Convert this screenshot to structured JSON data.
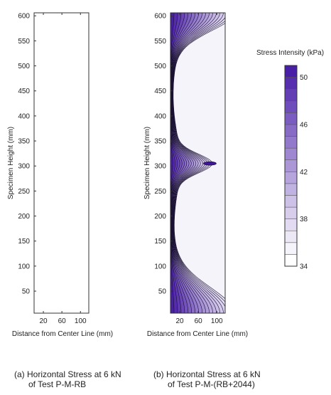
{
  "chart_data": [
    {
      "type": "heatmap",
      "panel": "a",
      "xlabel": "Distance from Center Line (mm)",
      "ylabel": "Specimen Height (mm)",
      "xticks": [
        20,
        60,
        100
      ],
      "yticks": [
        50,
        100,
        150,
        200,
        250,
        300,
        350,
        400,
        450,
        500,
        550,
        600
      ],
      "xlim": [
        0,
        118
      ],
      "ylim": [
        6,
        606
      ],
      "caption": [
        "(a) Horizontal Stress at 6 kN",
        "of Test P-M-RB"
      ],
      "grid": false
    },
    {
      "type": "heatmap",
      "panel": "b",
      "xlabel": "Distance from Center Line (mm)",
      "ylabel": "Specimen Height (mm)",
      "xticks": [
        20,
        60,
        100
      ],
      "yticks": [
        50,
        100,
        150,
        200,
        250,
        300,
        350,
        400,
        450,
        500,
        550,
        600
      ],
      "xlim": [
        0,
        118
      ],
      "ylim": [
        6,
        606
      ],
      "caption": [
        "(b) Horizontal Stress at 6 kN",
        "of Test P-M-(RB+2044)"
      ],
      "grid": false,
      "color_scale": {
        "title": "Stress Intensity (kPa)",
        "min": 34,
        "max": 51,
        "ticks": [
          34,
          38,
          42,
          46,
          50
        ],
        "low_color": "#ffffff",
        "high_color": "#4a1fa8"
      },
      "contour_description": "Stress highest at mid-height (~305 mm) near x≈85 mm and at top/bottom edges; low stress band around 150-250 mm and 380-500 mm."
    }
  ]
}
